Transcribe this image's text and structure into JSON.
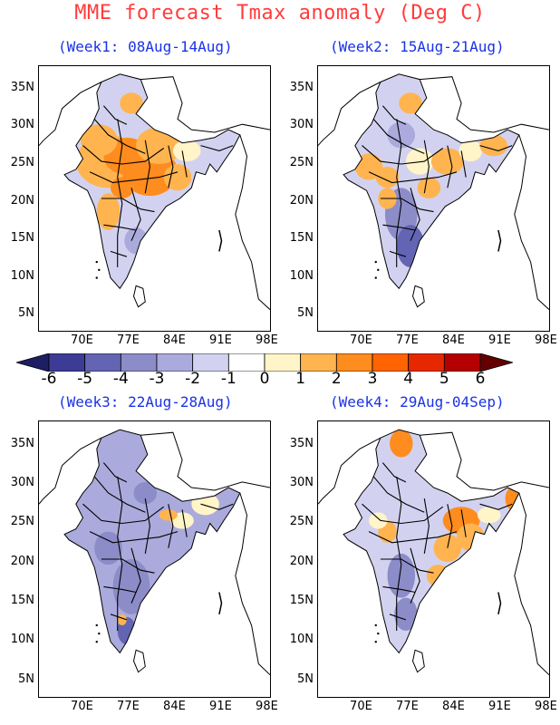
{
  "title": "MME forecast Tmax anomaly (Deg C)",
  "panels": [
    {
      "title": "(Week1: 08Aug-14Aug)",
      "dominant": "warm"
    },
    {
      "title": "(Week2: 15Aug-21Aug)",
      "dominant": "mixed"
    },
    {
      "title": "(Week3: 22Aug-28Aug)",
      "dominant": "cool"
    },
    {
      "title": "(Week4: 29Aug-04Sep)",
      "dominant": "mixed-warm-east"
    }
  ],
  "lat_ticks": [
    "35N",
    "30N",
    "25N",
    "20N",
    "15N",
    "10N",
    "5N"
  ],
  "lon_ticks": [
    "70E",
    "77E",
    "84E",
    "91E",
    "98E"
  ],
  "colorbar": {
    "labels": [
      "-6",
      "-5",
      "-4",
      "-3",
      "-2",
      "-1",
      "0",
      "1",
      "2",
      "3",
      "4",
      "5",
      "6"
    ],
    "colors": [
      "#1e1e64",
      "#3c3c96",
      "#6464b4",
      "#8c8cc8",
      "#aaaadc",
      "#d2d2f0",
      "#ffffff",
      "#fff5c8",
      "#ffb450",
      "#ff8c1e",
      "#ff6400",
      "#e62800",
      "#b40000",
      "#640000"
    ]
  }
}
